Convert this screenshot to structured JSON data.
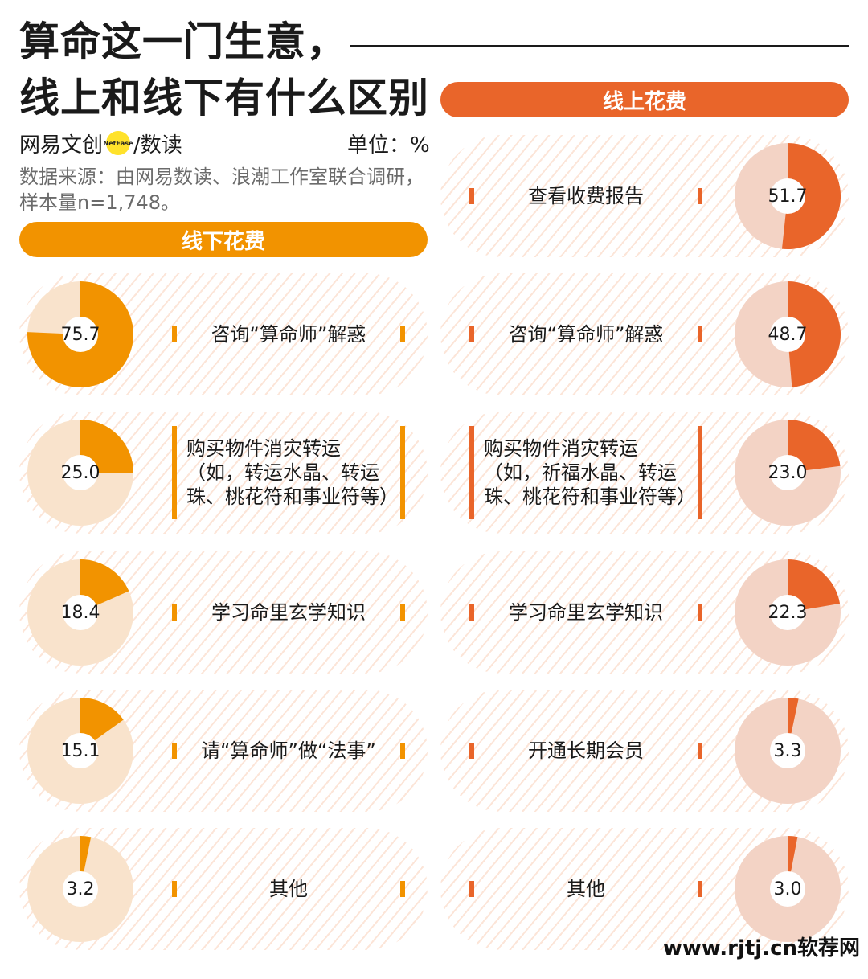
{
  "title": [
    "算命这一门生意，",
    "线上和线下有什么区别"
  ],
  "brand": {
    "name": "网易文创",
    "badge": "NetEase",
    "suffix": "/数读"
  },
  "unit": "单位：%",
  "source": "数据来源：由网易数读、浪潮工作室联合调研，样本量n=1,748。",
  "colors": {
    "offline": "#f29300",
    "online": "#e9652a",
    "offline_light": "#f9e3cc",
    "online_light": "#f3d3c5"
  },
  "chart_data": [
    {
      "type": "pie",
      "title": "线下花费",
      "unit": "%",
      "categories": [
        "咨询“算命师”解惑",
        "购买物件消灾转运（如，转运水晶、转运珠、桃花符和事业符等）",
        "学习命里玄学知识",
        "请“算命师”做“法事”",
        "其他"
      ],
      "values": [
        75.7,
        25.0,
        18.4,
        15.1,
        3.2
      ],
      "labels": [
        "75.7",
        "25.0",
        "18.4",
        "15.1",
        "3.2"
      ]
    },
    {
      "type": "pie",
      "title": "线上花费",
      "unit": "%",
      "categories": [
        "查看收费报告",
        "咨询“算命师”解惑",
        "购买物件消灾转运（如，祈福水晶、转运珠、桃花符和事业符等）",
        "学习命里玄学知识",
        "开通长期会员",
        "其他"
      ],
      "values": [
        51.7,
        48.7,
        23.0,
        22.3,
        3.3,
        3.0
      ],
      "labels": [
        "51.7",
        "48.7",
        "23.0",
        "22.3",
        "3.3",
        "3.0"
      ]
    }
  ],
  "watermark": "www.rjtj.cn软荐网"
}
